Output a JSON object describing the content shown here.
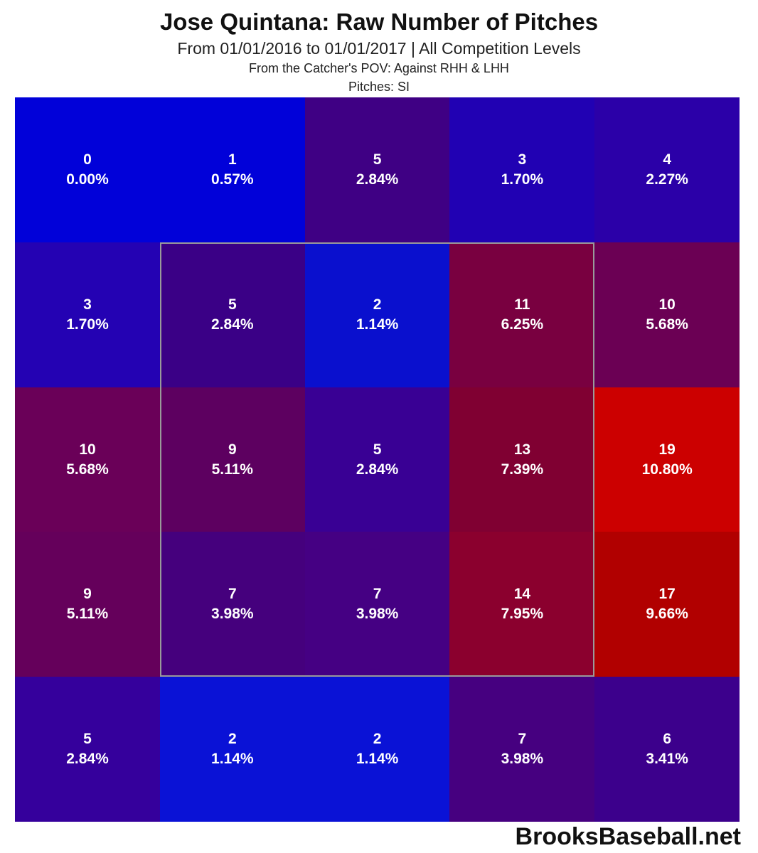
{
  "title": "Jose Quintana: Raw Number of Pitches",
  "subtitle": "From 01/01/2016 to 01/01/2017 | All Competition Levels",
  "pov_line": "From the Catcher's POV:   Against RHH & LHH",
  "pitch_line": "Pitches:  SI",
  "brand": "BrooksBaseball.net",
  "chart_data": {
    "type": "heatmap",
    "rows": 5,
    "cols": 5,
    "counts": [
      [
        0,
        1,
        5,
        3,
        4
      ],
      [
        3,
        5,
        2,
        11,
        10
      ],
      [
        10,
        9,
        5,
        13,
        19
      ],
      [
        9,
        7,
        7,
        14,
        17
      ],
      [
        5,
        2,
        2,
        7,
        6
      ]
    ],
    "percents": [
      [
        "0.00%",
        "0.57%",
        "2.84%",
        "1.70%",
        "2.27%"
      ],
      [
        "1.70%",
        "2.84%",
        "1.14%",
        "6.25%",
        "5.68%"
      ],
      [
        "5.68%",
        "5.11%",
        "2.84%",
        "7.39%",
        "10.80%"
      ],
      [
        "5.11%",
        "3.98%",
        "3.98%",
        "7.95%",
        "9.66%"
      ],
      [
        "2.84%",
        "1.14%",
        "1.14%",
        "3.98%",
        "3.41%"
      ]
    ],
    "colors": [
      [
        "#0101d9",
        "#0101d9",
        "#3f0084",
        "#2101b3",
        "#2b00a8"
      ],
      [
        "#2402b3",
        "#3a0086",
        "#0a10ce",
        "#790040",
        "#6b0054"
      ],
      [
        "#6a0058",
        "#5d0060",
        "#390094",
        "#800032",
        "#cc0000"
      ],
      [
        "#65005b",
        "#45007d",
        "#450083",
        "#8b002e",
        "#b10000"
      ],
      [
        "#35009c",
        "#0a12d6",
        "#0a12d6",
        "#460080",
        "#3c008c"
      ]
    ],
    "strike_zone": {
      "rows": [
        1,
        3
      ],
      "cols": [
        1,
        3
      ]
    }
  }
}
